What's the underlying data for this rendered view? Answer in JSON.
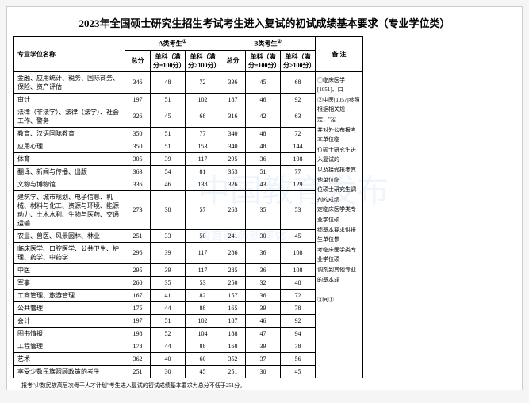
{
  "title": "2023年全国硕士研究生招生考试考生进入复试的初试成绩基本要求（专业学位类）",
  "header": {
    "name_col": "专业学位名称",
    "catA": "A类考生",
    "catB": "B类考生",
    "notes": "备 注",
    "total": "总分",
    "sub100": "单科（满分=100分）",
    "subOver100": "单科（满分>100分）"
  },
  "rows": [
    {
      "name": "金融、应用统计、税务、国际商务、保险、资产评估",
      "a": [
        346,
        48,
        72
      ],
      "b": [
        336,
        45,
        68
      ],
      "tall": true
    },
    {
      "name": "审计",
      "a": [
        197,
        51,
        102
      ],
      "b": [
        187,
        46,
        92
      ]
    },
    {
      "name": "法律（非法学）、法律（法学）、社会工作、警务",
      "a": [
        326,
        45,
        68
      ],
      "b": [
        316,
        42,
        63
      ]
    },
    {
      "name": "教育、汉语国际教育",
      "a": [
        350,
        51,
        77
      ],
      "b": [
        340,
        48,
        72
      ]
    },
    {
      "name": "应用心理",
      "a": [
        350,
        51,
        153
      ],
      "b": [
        340,
        48,
        144
      ]
    },
    {
      "name": "体育",
      "a": [
        305,
        39,
        117
      ],
      "b": [
        295,
        36,
        108
      ]
    },
    {
      "name": "翻译、新闻与传播、出版",
      "a": [
        363,
        54,
        81
      ],
      "b": [
        353,
        51,
        77
      ]
    },
    {
      "name": "文物与博物馆",
      "a": [
        336,
        46,
        138
      ],
      "b": [
        326,
        43,
        129
      ]
    },
    {
      "name": "建筑学、城市规划、电子信息、机械、材料与化工、资源与环境、能源动力、土木水利、生物与医药、交通运输",
      "a": [
        273,
        38,
        57
      ],
      "b": [
        263,
        35,
        53
      ],
      "tall": true
    },
    {
      "name": "农业、兽医、风景园林、林业",
      "a": [
        251,
        33,
        50
      ],
      "b": [
        241,
        30,
        45
      ]
    },
    {
      "name": "临床医学、口腔医学、公共卫生、护理、药学、中药学",
      "a": [
        296,
        39,
        117
      ],
      "b": [
        286,
        36,
        108
      ],
      "tall": true
    },
    {
      "name": "中医",
      "a": [
        295,
        39,
        117
      ],
      "b": [
        285,
        36,
        108
      ]
    },
    {
      "name": "军事",
      "a": [
        260,
        35,
        53
      ],
      "b": [
        250,
        32,
        48
      ]
    },
    {
      "name": "工商管理、旅游管理",
      "a": [
        167,
        41,
        82
      ],
      "b": [
        157,
        36,
        72
      ]
    },
    {
      "name": "公共管理",
      "a": [
        175,
        44,
        88
      ],
      "b": [
        165,
        39,
        78
      ]
    },
    {
      "name": "会计",
      "a": [
        197,
        51,
        102
      ],
      "b": [
        187,
        46,
        92
      ]
    },
    {
      "name": "图书情报",
      "a": [
        198,
        52,
        104
      ],
      "b": [
        188,
        47,
        94
      ]
    },
    {
      "name": "工程管理",
      "a": [
        178,
        44,
        88
      ],
      "b": [
        168,
        39,
        78
      ]
    },
    {
      "name": "艺术",
      "a": [
        362,
        40,
        60
      ],
      "b": [
        352,
        37,
        56
      ]
    },
    {
      "name": "享受少数民族照顾政策的考生",
      "a": [
        251,
        30,
        45
      ],
      "b": [
        251,
        30,
        45
      ]
    }
  ],
  "side_notes": [
    "①临床医学[1051]、口",
    "②中医[1057]参照",
    "根据相关规定，\"招",
    "并对外公布报考本单位临",
    "位硕士研究生进入复试的",
    "以及接受报考其他单位临",
    "位硕士研究生调剂的成绩",
    "定临床医学类专业学位硕",
    "绩基本要求供报生单位参",
    "考临床医学类专业学位硕",
    "调剂到其他专业的基本成",
    "",
    "③同①"
  ],
  "footer": "报考\"少数民族高层次骨干人才计划\"考生进入复试的初试成绩基本要求为总分不低于251分。",
  "colors": {
    "bg": "#ffffff",
    "border": "#000000",
    "text": "#000000"
  }
}
